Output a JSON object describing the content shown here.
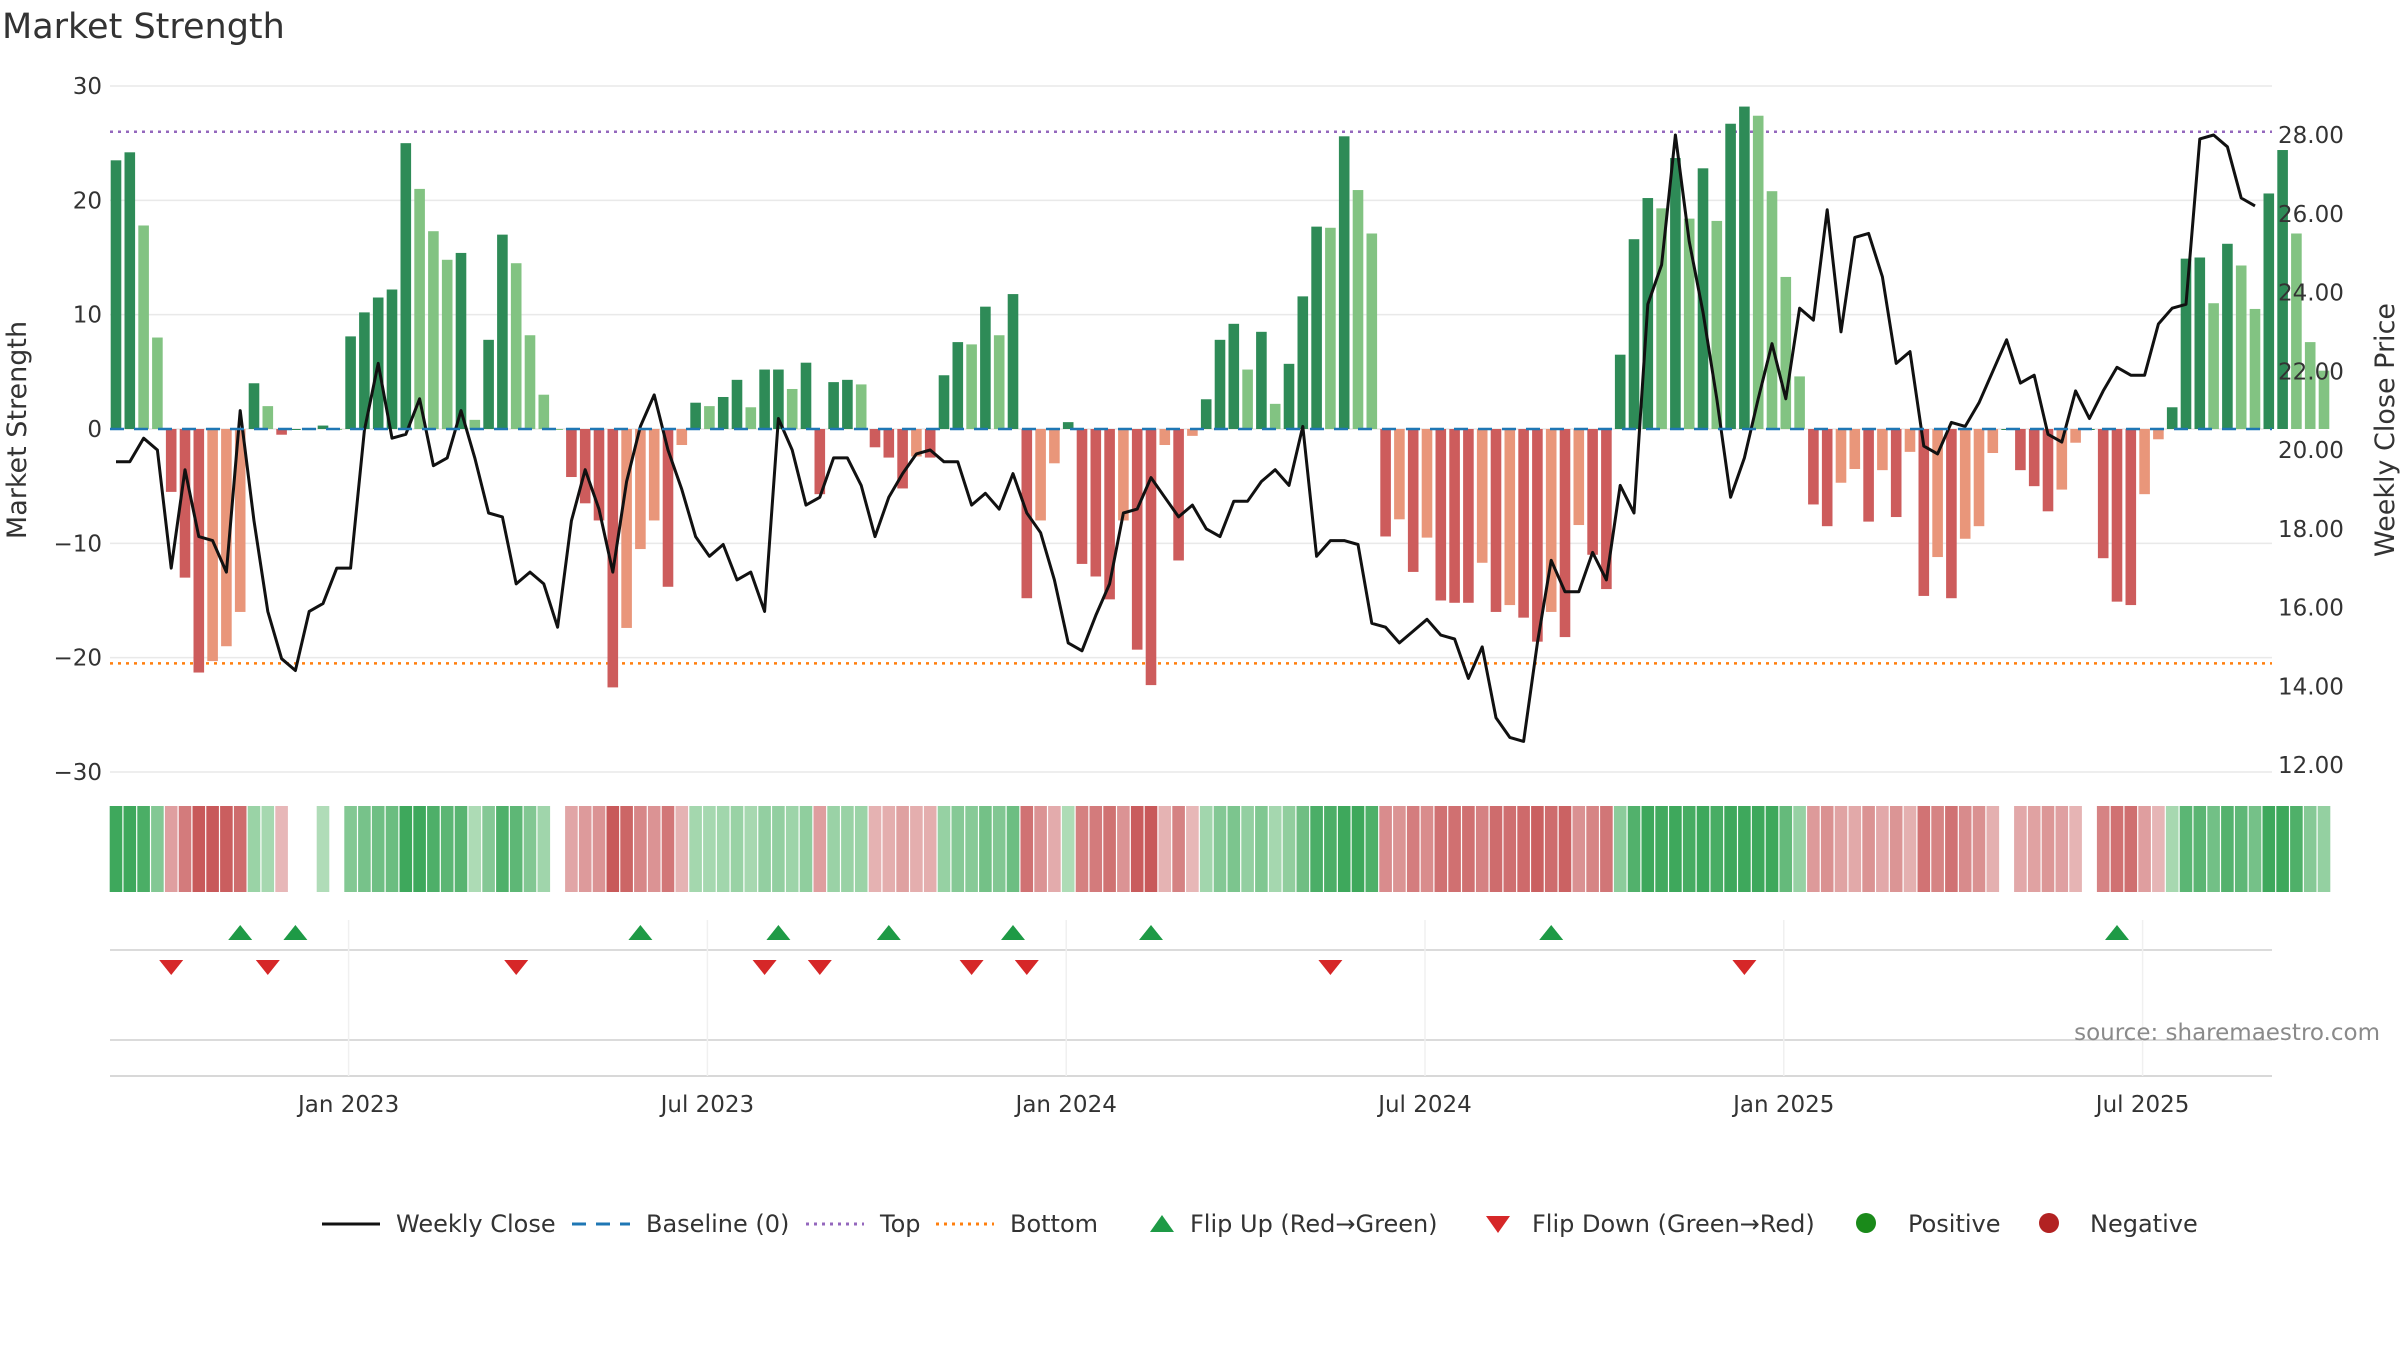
{
  "chart_data": {
    "type": "bar+line",
    "title": "Market Strength",
    "ylabel_left": "Market Strength",
    "ylabel_right": "Weekly Close Price",
    "ylim_left": [
      -30,
      30
    ],
    "ylim_right": [
      12,
      28.5
    ],
    "yticks_left": [
      30,
      20,
      10,
      0,
      -10,
      -20,
      -30
    ],
    "yticks_left_labels": [
      "30",
      "20",
      "10",
      "0",
      "−10",
      "−20",
      "−30"
    ],
    "yticks_right": [
      28,
      26,
      24,
      22,
      20,
      18,
      16,
      14,
      12
    ],
    "yticks_right_labels": [
      "28.00",
      "26.00",
      "24.00",
      "22.00",
      "20.00",
      "18.00",
      "16.00",
      "14.00",
      "12.00"
    ],
    "top_line": 26,
    "bottom_line": -20.5,
    "baseline": 0,
    "x_start_week": "2022-09-05",
    "x_tick_labels": [
      {
        "label": "Jan 2023",
        "week": 17
      },
      {
        "label": "Jul 2023",
        "week": 43
      },
      {
        "label": "Jan 2024",
        "week": 69
      },
      {
        "label": "Jul 2024",
        "week": 95
      },
      {
        "label": "Jan 2025",
        "week": 121
      },
      {
        "label": "Jul 2025",
        "week": 147
      }
    ],
    "strength": [
      23.5,
      24.2,
      17.8,
      8,
      -5.5,
      -13,
      -21.3,
      -20.3,
      -19,
      -16,
      4,
      2,
      -0.5,
      0,
      0,
      0.3,
      0,
      8.1,
      10.2,
      11.5,
      12.2,
      25,
      21,
      17.3,
      14.8,
      15.4,
      0.8,
      7.8,
      17,
      14.5,
      8.2,
      3,
      0,
      -4.2,
      -6.5,
      -8,
      -22.6,
      -17.4,
      -10.5,
      -8,
      -13.8,
      -1.4,
      2.3,
      2,
      2.8,
      4.3,
      1.9,
      5.2,
      5.2,
      3.5,
      5.8,
      -5.7,
      4.1,
      4.3,
      3.9,
      -1.6,
      -2.5,
      -5.2,
      -2.4,
      -2.5,
      4.7,
      7.6,
      7.4,
      10.7,
      8.2,
      11.8,
      -14.8,
      -8,
      -3,
      0.6,
      -11.8,
      -12.9,
      -14.9,
      -8,
      -19.3,
      -22.4,
      -1.4,
      -11.5,
      -0.6,
      2.6,
      7.8,
      9.2,
      5.2,
      8.5,
      2.2,
      5.7,
      11.6,
      17.7,
      17.6,
      25.6,
      20.9,
      17.1,
      -9.4,
      -7.9,
      -12.5,
      -9.5,
      -15,
      -15.2,
      -15.2,
      -11.7,
      -16,
      -15.4,
      -16.5,
      -18.6,
      -16,
      -18.2,
      -8.4,
      -11,
      -14,
      6.5,
      16.6,
      20.2,
      19.3,
      23.7,
      18.4,
      22.8,
      18.2,
      26.7,
      28.2,
      27.4,
      20.8,
      13.3,
      4.6,
      -6.6,
      -8.5,
      -4.7,
      -3.5,
      -8.1,
      -3.6,
      -7.7,
      -2,
      -14.6,
      -11.2,
      -14.8,
      -9.6,
      -8.5,
      -2.1,
      0,
      -3.6,
      -5,
      -7.2,
      -5.3,
      -1.2,
      0,
      -11.3,
      -15.1,
      -15.4,
      -5.7,
      -0.9,
      1.9,
      14.9,
      15,
      11,
      16.2,
      14.3,
      10.5,
      20.6,
      24.4,
      17.1,
      7.6,
      5.1
    ],
    "weekly_close": [
      19.7,
      19.7,
      20.3,
      20,
      17,
      19.5,
      17.8,
      17.7,
      16.9,
      21,
      18.2,
      15.9,
      14.7,
      14.4,
      15.9,
      16.1,
      17,
      17,
      20.5,
      22.2,
      20.3,
      20.4,
      21.3,
      19.6,
      19.8,
      21,
      19.8,
      18.4,
      18.3,
      16.6,
      16.9,
      16.6,
      15.5,
      18.2,
      19.5,
      18.5,
      16.9,
      19.2,
      20.6,
      21.4,
      20,
      19,
      17.8,
      17.3,
      17.6,
      16.7,
      16.9,
      15.9,
      20.8,
      20,
      18.6,
      18.8,
      19.8,
      19.8,
      19.1,
      17.8,
      18.8,
      19.4,
      19.9,
      20,
      19.7,
      19.7,
      18.6,
      18.9,
      18.5,
      19.4,
      18.4,
      17.9,
      16.7,
      15.1,
      14.9,
      15.8,
      16.6,
      18.4,
      18.5,
      19.3,
      18.8,
      18.3,
      18.6,
      18,
      17.8,
      18.7,
      18.7,
      19.2,
      19.5,
      19.1,
      20.6,
      17.3,
      17.7,
      17.7,
      17.6,
      15.6,
      15.5,
      15.1,
      15.4,
      15.7,
      15.3,
      15.2,
      14.2,
      15,
      13.2,
      12.7,
      12.6,
      15.1,
      17.2,
      16.4,
      16.4,
      17.4,
      16.7,
      19.1,
      18.4,
      23.7,
      24.7,
      28,
      25.3,
      23.5,
      21.3,
      18.8,
      19.8,
      21.3,
      22.7,
      21.3,
      23.6,
      23.3,
      26.1,
      23,
      25.4,
      25.5,
      24.4,
      22.2,
      22.5,
      20.1,
      19.9,
      20.7,
      20.6,
      21.2,
      22,
      22.8,
      21.7,
      21.9,
      20.4,
      20.2,
      21.5,
      20.8,
      21.5,
      22.1,
      21.9,
      21.9,
      23.2,
      23.6,
      23.7,
      27.9,
      28,
      27.7,
      26.4,
      26.2
    ],
    "flip_up_weeks": [
      9,
      13,
      38,
      48,
      56,
      65,
      75,
      104,
      145
    ],
    "flip_down_weeks": [
      4,
      11,
      29,
      47,
      51,
      62,
      66,
      88,
      118
    ],
    "colors": {
      "strong_positive": "#2e8b57",
      "weak_positive": "#82c382",
      "strong_negative": "#cd5c5c",
      "weak_negative": "#e9967a",
      "close_line": "#111111",
      "baseline": "#1f77b4",
      "top": "#9467bd",
      "bottom": "#ff7f0e",
      "flip_up": "#1e9a46",
      "flip_down": "#d62728",
      "positive_dot": "#1a8a1a",
      "negative_dot": "#b22222"
    },
    "legend": [
      {
        "label": "Weekly Close",
        "kind": "line"
      },
      {
        "label": "Baseline (0)",
        "kind": "dash"
      },
      {
        "label": "Top",
        "kind": "dot-purple"
      },
      {
        "label": "Bottom",
        "kind": "dot-orange"
      },
      {
        "label": "Flip Up (Red→Green)",
        "kind": "tri-up"
      },
      {
        "label": "Flip Down (Green→Red)",
        "kind": "tri-down"
      },
      {
        "label": "Positive",
        "kind": "dot-green"
      },
      {
        "label": "Negative",
        "kind": "dot-red"
      }
    ],
    "source": "source: sharemaestro.com"
  }
}
